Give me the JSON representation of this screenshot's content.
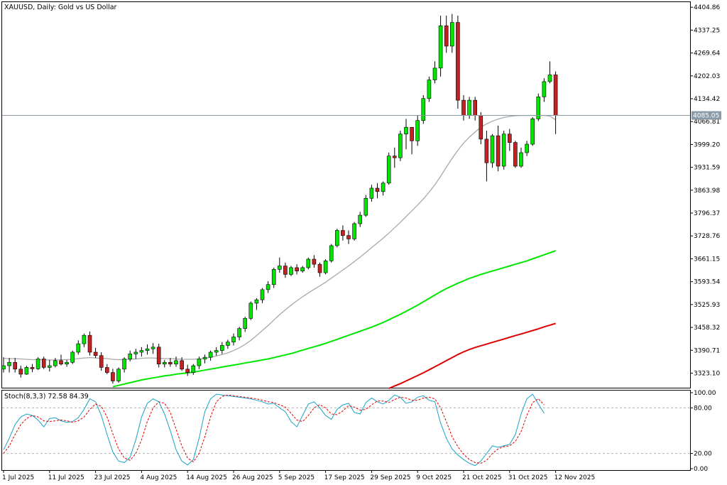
{
  "chart_data": [
    {
      "type": "candlestick",
      "title": "XAUUSD, Daily:  Gold vs US Dollar",
      "ylim": [
        3280,
        4420
      ],
      "y_ticks": [
        "4404.86",
        "4337.25",
        "4269.64",
        "4202.03",
        "4134.42",
        "4066.81",
        "3999.20",
        "3931.59",
        "3863.98",
        "3796.37",
        "3728.76",
        "3661.15",
        "3593.54",
        "3525.93",
        "3458.32",
        "3390.71",
        "3323.10"
      ],
      "current_price": {
        "value": 4085.05,
        "label": "4085.05"
      },
      "x_labels": [
        {
          "label": "1 Jul 2025",
          "index": 0
        },
        {
          "label": "11 Jul 2025",
          "index": 8
        },
        {
          "label": "23 Jul 2025",
          "index": 16
        },
        {
          "label": "4 Aug 2025",
          "index": 24
        },
        {
          "label": "14 Aug 2025",
          "index": 32
        },
        {
          "label": "26 Aug 2025",
          "index": 40
        },
        {
          "label": "5 Sep 2025",
          "index": 48
        },
        {
          "label": "17 Sep 2025",
          "index": 56
        },
        {
          "label": "29 Sep 2025",
          "index": 64
        },
        {
          "label": "9 Oct 2025",
          "index": 72
        },
        {
          "label": "21 Oct 2025",
          "index": 80
        },
        {
          "label": "31 Oct 2025",
          "index": 88
        },
        {
          "label": "12 Nov 2025",
          "index": 96
        }
      ],
      "candles": [
        [
          3335,
          3370,
          3325,
          3345
        ],
        [
          3345,
          3368,
          3325,
          3355
        ],
        [
          3355,
          3368,
          3325,
          3335
        ],
        [
          3335,
          3345,
          3310,
          3320
        ],
        [
          3320,
          3345,
          3318,
          3340
        ],
        [
          3340,
          3350,
          3326,
          3336
        ],
        [
          3336,
          3370,
          3333,
          3365
        ],
        [
          3365,
          3372,
          3335,
          3340
        ],
        [
          3340,
          3362,
          3328,
          3345
        ],
        [
          3345,
          3368,
          3340,
          3360
        ],
        [
          3360,
          3378,
          3346,
          3350
        ],
        [
          3350,
          3362,
          3342,
          3355
        ],
        [
          3355,
          3390,
          3350,
          3385
        ],
        [
          3385,
          3420,
          3378,
          3410
        ],
        [
          3410,
          3440,
          3400,
          3435
        ],
        [
          3435,
          3446,
          3375,
          3385
        ],
        [
          3385,
          3398,
          3368,
          3375
        ],
        [
          3375,
          3385,
          3330,
          3340
        ],
        [
          3340,
          3350,
          3320,
          3325
        ],
        [
          3325,
          3336,
          3292,
          3300
        ],
        [
          3300,
          3340,
          3295,
          3335
        ],
        [
          3335,
          3370,
          3325,
          3365
        ],
        [
          3365,
          3390,
          3358,
          3380
        ],
        [
          3380,
          3395,
          3365,
          3385
        ],
        [
          3385,
          3400,
          3372,
          3390
        ],
        [
          3390,
          3408,
          3378,
          3395
        ],
        [
          3395,
          3412,
          3380,
          3400
        ],
        [
          3400,
          3410,
          3340,
          3350
        ],
        [
          3350,
          3362,
          3340,
          3355
        ],
        [
          3355,
          3368,
          3342,
          3350
        ],
        [
          3350,
          3372,
          3342,
          3360
        ],
        [
          3360,
          3370,
          3330,
          3335
        ],
        [
          3335,
          3348,
          3315,
          3325
        ],
        [
          3325,
          3350,
          3318,
          3345
        ],
        [
          3345,
          3372,
          3335,
          3365
        ],
        [
          3365,
          3378,
          3352,
          3370
        ],
        [
          3370,
          3390,
          3360,
          3385
        ],
        [
          3385,
          3400,
          3375,
          3390
        ],
        [
          3390,
          3415,
          3380,
          3405
        ],
        [
          3405,
          3422,
          3395,
          3415
        ],
        [
          3415,
          3440,
          3405,
          3430
        ],
        [
          3430,
          3460,
          3420,
          3455
        ],
        [
          3455,
          3490,
          3445,
          3485
        ],
        [
          3485,
          3535,
          3480,
          3530
        ],
        [
          3530,
          3545,
          3510,
          3540
        ],
        [
          3540,
          3575,
          3530,
          3570
        ],
        [
          3570,
          3595,
          3560,
          3585
        ],
        [
          3585,
          3635,
          3575,
          3630
        ],
        [
          3630,
          3665,
          3620,
          3640
        ],
        [
          3640,
          3650,
          3605,
          3615
        ],
        [
          3615,
          3640,
          3610,
          3635
        ],
        [
          3635,
          3645,
          3615,
          3625
        ],
        [
          3625,
          3640,
          3620,
          3635
        ],
        [
          3635,
          3665,
          3630,
          3660
        ],
        [
          3660,
          3672,
          3635,
          3645
        ],
        [
          3645,
          3650,
          3608,
          3620
        ],
        [
          3620,
          3660,
          3615,
          3655
        ],
        [
          3655,
          3705,
          3650,
          3700
        ],
        [
          3700,
          3750,
          3695,
          3745
        ],
        [
          3745,
          3760,
          3715,
          3730
        ],
        [
          3730,
          3745,
          3705,
          3720
        ],
        [
          3720,
          3770,
          3715,
          3765
        ],
        [
          3765,
          3800,
          3755,
          3790
        ],
        [
          3790,
          3850,
          3785,
          3840
        ],
        [
          3840,
          3880,
          3830,
          3870
        ],
        [
          3870,
          3885,
          3840,
          3860
        ],
        [
          3860,
          3890,
          3848,
          3885
        ],
        [
          3885,
          3975,
          3880,
          3965
        ],
        [
          3965,
          3990,
          3930,
          3960
        ],
        [
          3960,
          4040,
          3950,
          4030
        ],
        [
          4030,
          4075,
          3985,
          4050
        ],
        [
          4050,
          4040,
          3970,
          4010
        ],
        [
          4010,
          4085,
          3995,
          4070
        ],
        [
          4070,
          4145,
          4060,
          4135
        ],
        [
          4135,
          4200,
          4125,
          4190
        ],
        [
          4190,
          4245,
          4180,
          4225
        ],
        [
          4225,
          4380,
          4200,
          4350
        ],
        [
          4350,
          4380,
          4270,
          4290
        ],
        [
          4290,
          4385,
          4270,
          4360
        ],
        [
          4360,
          4380,
          4105,
          4130
        ],
        [
          4130,
          4145,
          4070,
          4085
        ],
        [
          4085,
          4140,
          4075,
          4130
        ],
        [
          4130,
          4140,
          4070,
          4085
        ],
        [
          4085,
          4095,
          4000,
          4015
        ],
        [
          4015,
          4040,
          3890,
          3945
        ],
        [
          3945,
          4030,
          3930,
          4025
        ],
        [
          4025,
          4055,
          3920,
          3935
        ],
        [
          3935,
          4040,
          3925,
          4030
        ],
        [
          4030,
          4045,
          3980,
          4005
        ],
        [
          4005,
          4010,
          3930,
          3935
        ],
        [
          3935,
          3990,
          3930,
          3975
        ],
        [
          3975,
          4010,
          3965,
          4000
        ],
        [
          4000,
          4080,
          3995,
          4075
        ],
        [
          4075,
          4150,
          4068,
          4140
        ],
        [
          4140,
          4195,
          4125,
          4185
        ],
        [
          4185,
          4245,
          4180,
          4205
        ],
        [
          4205,
          4215,
          4030,
          4085
        ]
      ],
      "series": [
        {
          "name": "",
          "color": "#a9a9a9",
          "values": [
            3367,
            3366,
            3366,
            3365,
            3364,
            3363,
            3363,
            3363,
            3362,
            3362,
            3363,
            3363,
            3364,
            3366,
            3368,
            3369,
            3368,
            3367,
            3366,
            3364,
            3363,
            3363,
            3364,
            3365,
            3367,
            3368,
            3368,
            3367,
            3366,
            3366,
            3365,
            3364,
            3364,
            3364,
            3365,
            3367,
            3370,
            3374,
            3378,
            3383,
            3390,
            3398,
            3408,
            3420,
            3434,
            3449,
            3464,
            3480,
            3496,
            3510,
            3524,
            3537,
            3549,
            3560,
            3571,
            3581,
            3592,
            3604,
            3616,
            3628,
            3640,
            3653,
            3666,
            3680,
            3694,
            3708,
            3722,
            3737,
            3753,
            3769,
            3786,
            3803,
            3820,
            3838,
            3858,
            3880,
            3905,
            3932,
            3958,
            3982,
            4003,
            4021,
            4036,
            4050,
            4060,
            4068,
            4074,
            4079,
            4082,
            4084,
            4085,
            4085,
            4085,
            4085,
            4085,
            4083,
            4072
          ]
        },
        {
          "name": "",
          "color": "#00e600",
          "values": [
            null,
            null,
            null,
            null,
            null,
            null,
            null,
            null,
            null,
            null,
            null,
            null,
            null,
            null,
            null,
            null,
            null,
            null,
            null,
            3283,
            3287,
            3291,
            3295,
            3299,
            3303,
            3306,
            3309,
            3312,
            3315,
            3317,
            3320,
            3322,
            3324,
            3326,
            3329,
            3332,
            3335,
            3338,
            3341,
            3344,
            3347,
            3350,
            3353,
            3356,
            3359,
            3362,
            3365,
            3369,
            3373,
            3377,
            3381,
            3386,
            3391,
            3396,
            3401,
            3406,
            3411,
            3417,
            3423,
            3429,
            3435,
            3441,
            3447,
            3453,
            3459,
            3466,
            3473,
            3481,
            3489,
            3497,
            3506,
            3515,
            3524,
            3534,
            3544,
            3554,
            3564,
            3573,
            3581,
            3589,
            3596,
            3603,
            3609,
            3615,
            3620,
            3625,
            3630,
            3635,
            3640,
            3645,
            3650,
            3655,
            3661,
            3667,
            3673,
            3679,
            3685
          ]
        },
        {
          "name": "",
          "color": "#dd0000",
          "values": [
            null,
            null,
            null,
            null,
            null,
            null,
            null,
            null,
            null,
            null,
            null,
            null,
            null,
            null,
            null,
            null,
            null,
            null,
            null,
            null,
            null,
            null,
            null,
            null,
            null,
            null,
            null,
            null,
            null,
            null,
            null,
            null,
            null,
            null,
            null,
            null,
            null,
            null,
            null,
            null,
            null,
            null,
            null,
            null,
            null,
            null,
            null,
            null,
            null,
            null,
            null,
            null,
            null,
            null,
            null,
            null,
            null,
            null,
            null,
            null,
            null,
            null,
            null,
            null,
            null,
            null,
            null,
            3278,
            3285,
            3292,
            3300,
            3308,
            3316,
            3324,
            3333,
            3342,
            3351,
            3360,
            3369,
            3378,
            3386,
            3393,
            3399,
            3404,
            3409,
            3414,
            3419,
            3424,
            3429,
            3434,
            3439,
            3444,
            3449,
            3454,
            3460,
            3465,
            3470
          ]
        }
      ]
    },
    {
      "type": "line",
      "title": "Stoch(8,3,3) 72.58 84.39",
      "ylim": [
        0,
        100
      ],
      "y_ticks": [
        "100.00",
        "80.00",
        "20.00",
        "0.00"
      ],
      "levels": [
        80,
        20
      ],
      "series": [
        {
          "name": "",
          "color": "#1aa3c9",
          "values": [
            25,
            40,
            58,
            68,
            72,
            70,
            64,
            55,
            66,
            67,
            63,
            61,
            62,
            67,
            78,
            92,
            88,
            70,
            45,
            22,
            10,
            8,
            15,
            38,
            68,
            86,
            92,
            88,
            72,
            50,
            25,
            10,
            5,
            12,
            40,
            75,
            92,
            98,
            97,
            96,
            95,
            94,
            93,
            92,
            90,
            88,
            85,
            86,
            80,
            75,
            62,
            55,
            70,
            85,
            88,
            80,
            70,
            65,
            78,
            84,
            86,
            74,
            72,
            87,
            93,
            88,
            85,
            90,
            97,
            94,
            86,
            88,
            94,
            96,
            90,
            88,
            60,
            40,
            26,
            18,
            12,
            7,
            4,
            10,
            20,
            30,
            28,
            30,
            32,
            45,
            72,
            92,
            98,
            85,
            73
          ]
        },
        {
          "name": "",
          "color": "#e00000",
          "values": [
            20,
            30,
            45,
            58,
            66,
            70,
            68,
            63,
            62,
            63,
            64,
            63,
            61,
            63,
            68,
            78,
            85,
            82,
            68,
            46,
            26,
            14,
            11,
            20,
            38,
            62,
            80,
            88,
            86,
            74,
            52,
            30,
            14,
            9,
            20,
            42,
            68,
            88,
            95,
            97,
            96,
            95,
            94,
            93,
            92,
            90,
            88,
            87,
            84,
            81,
            73,
            64,
            62,
            70,
            80,
            84,
            80,
            72,
            71,
            76,
            83,
            81,
            77,
            78,
            84,
            89,
            89,
            87,
            91,
            94,
            93,
            90,
            90,
            93,
            94,
            92,
            80,
            62,
            42,
            29,
            19,
            12,
            8,
            7,
            11,
            20,
            26,
            29,
            30,
            36,
            49,
            70,
            87,
            92,
            84
          ]
        }
      ]
    }
  ]
}
